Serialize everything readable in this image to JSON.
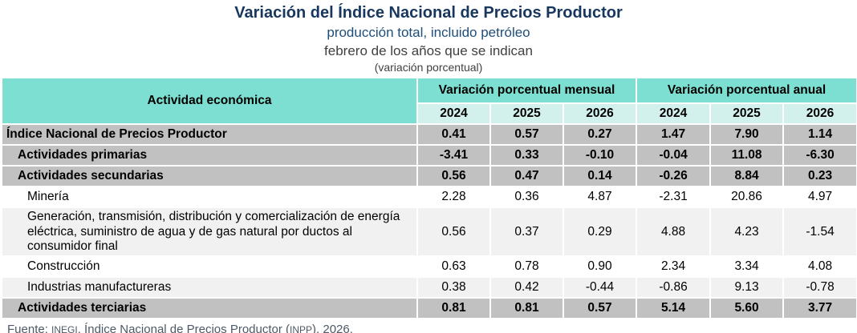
{
  "page": {
    "title": "Variación del Índice Nacional de Precios Productor",
    "subtitle": "producción total, incluido petróleo",
    "subtitle2": "febrero de los años que se indican",
    "subtitle3": "(variación porcentual)"
  },
  "colors": {
    "title_navy": "#17375E",
    "subtitle_navy": "#1F4E79",
    "subtitle_gray": "#404040",
    "header_teal": "#7DDFD1",
    "year_teal": "#D2F1EC",
    "summary_gray": "#C1C1C1",
    "alt_gray": "#F1F1F1",
    "footer_slate": "#4D5966"
  },
  "table": {
    "col1_header": "Actividad económica",
    "groups": [
      {
        "label": "Variación porcentual mensual",
        "years": [
          "2024",
          "2025",
          "2026"
        ]
      },
      {
        "label": "Variación porcentual anual",
        "years": [
          "2024",
          "2025",
          "2026"
        ]
      }
    ],
    "rows": [
      {
        "label": "Índice Nacional de Precios Productor",
        "level": 0,
        "style": "summary",
        "values": [
          "0.41",
          "0.57",
          "0.27",
          "1.47",
          "7.90",
          "1.14"
        ]
      },
      {
        "label": "Actividades primarias",
        "level": 1,
        "style": "summary",
        "values": [
          "-3.41",
          "0.33",
          "-0.10",
          "-0.04",
          "11.08",
          "-6.30"
        ]
      },
      {
        "label": "Actividades secundarias",
        "level": 1,
        "style": "summary",
        "values": [
          "0.56",
          "0.47",
          "0.14",
          "-0.26",
          "8.84",
          "0.23"
        ]
      },
      {
        "label": "Minería",
        "level": 2,
        "style": "white",
        "values": [
          "2.28",
          "0.36",
          "4.87",
          "-2.31",
          "20.86",
          "4.97"
        ]
      },
      {
        "label": "Generación, transmisión, distribución y comercialización de energía eléctrica, suministro de agua y de gas natural por ductos al consumidor final",
        "level": 2,
        "style": "alt",
        "values": [
          "0.56",
          "0.37",
          "0.29",
          "4.88",
          "4.23",
          "-1.54"
        ]
      },
      {
        "label": "Construcción",
        "level": 2,
        "style": "white",
        "values": [
          "0.63",
          "0.78",
          "0.90",
          "2.34",
          "3.34",
          "4.08"
        ]
      },
      {
        "label": "Industrias manufactureras",
        "level": 2,
        "style": "alt",
        "values": [
          "0.38",
          "0.42",
          "-0.44",
          "-0.86",
          "9.13",
          "-0.78"
        ]
      },
      {
        "label": "Actividades terciarias",
        "level": 1,
        "style": "summary",
        "values": [
          "0.81",
          "0.81",
          "0.57",
          "5.14",
          "5.60",
          "3.77"
        ]
      }
    ]
  },
  "footer": {
    "prefix": "Fuente: ",
    "org": "INEGI",
    "middle": ". Índice Nacional de Precios Productor (",
    "abbr": "INPP",
    "suffix": "), 2026."
  },
  "chart_data": {
    "type": "table",
    "title": "Variación del Índice Nacional de Precios Productor",
    "subtitle": "producción total, incluido petróleo; febrero de los años que se indican (variación porcentual)",
    "column_groups": [
      "Variación porcentual mensual",
      "Variación porcentual anual"
    ],
    "columns": [
      "Actividad económica",
      "Mensual 2024",
      "Mensual 2025",
      "Mensual 2026",
      "Anual 2024",
      "Anual 2025",
      "Anual 2026"
    ],
    "rows": [
      [
        "Índice Nacional de Precios Productor",
        0.41,
        0.57,
        0.27,
        1.47,
        7.9,
        1.14
      ],
      [
        "Actividades primarias",
        -3.41,
        0.33,
        -0.1,
        -0.04,
        11.08,
        -6.3
      ],
      [
        "Actividades secundarias",
        0.56,
        0.47,
        0.14,
        -0.26,
        8.84,
        0.23
      ],
      [
        "Minería",
        2.28,
        0.36,
        4.87,
        -2.31,
        20.86,
        4.97
      ],
      [
        "Generación, transmisión, distribución y comercialización de energía eléctrica, suministro de agua y de gas natural por ductos al consumidor final",
        0.56,
        0.37,
        0.29,
        4.88,
        4.23,
        -1.54
      ],
      [
        "Construcción",
        0.63,
        0.78,
        0.9,
        2.34,
        3.34,
        4.08
      ],
      [
        "Industrias manufactureras",
        0.38,
        0.42,
        -0.44,
        -0.86,
        9.13,
        -0.78
      ],
      [
        "Actividades terciarias",
        0.81,
        0.81,
        0.57,
        5.14,
        5.6,
        3.77
      ]
    ],
    "source": "Fuente: INEGI. Índice Nacional de Precios Productor (INPP), 2026."
  }
}
